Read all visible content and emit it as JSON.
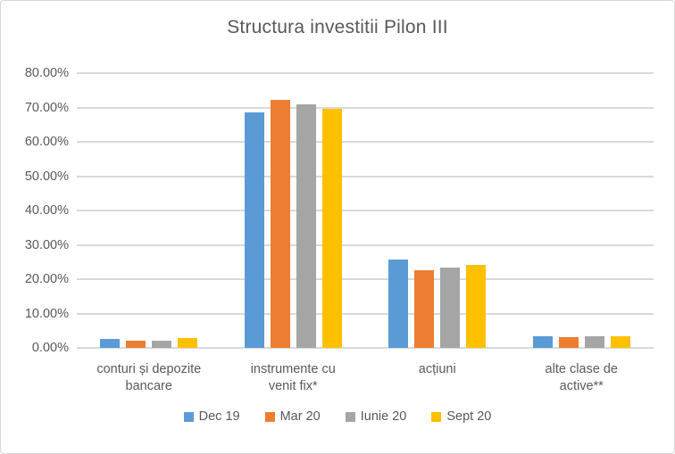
{
  "colors": {
    "text": "#595959",
    "grid": "#d9d9d9",
    "border": "#d7d7d7",
    "series_blue": "#5B9BD5",
    "series_orange": "#ED7D31",
    "series_gray": "#A5A5A5",
    "series_yellow": "#FFC000"
  },
  "chart_data": {
    "type": "bar",
    "title": "Structura investitii Pilon III",
    "categories": [
      "conturi și depozite bancare",
      "instrumente cu venit fix*",
      "acțiuni",
      "alte clase de active**"
    ],
    "category_label_lines": [
      [
        "conturi și depozite",
        "bancare"
      ],
      [
        "instrumente cu",
        "venit fix*"
      ],
      [
        "acțiuni"
      ],
      [
        "alte clase de",
        "active**"
      ]
    ],
    "series": [
      {
        "name": "Dec 19",
        "color": "#5B9BD5",
        "values": [
          2.6,
          68.5,
          25.6,
          3.3
        ]
      },
      {
        "name": "Mar 20",
        "color": "#ED7D31",
        "values": [
          2.1,
          72.3,
          22.5,
          3.1
        ]
      },
      {
        "name": "Iunie 20",
        "color": "#A5A5A5",
        "values": [
          2.2,
          70.9,
          23.4,
          3.5
        ]
      },
      {
        "name": "Sept 20",
        "color": "#FFC000",
        "values": [
          2.9,
          69.6,
          24.2,
          3.3
        ]
      }
    ],
    "xlabel": "",
    "ylabel": "",
    "ylim": [
      0,
      80
    ],
    "ytick_labels": [
      "0.00%",
      "10.00%",
      "20.00%",
      "30.00%",
      "40.00%",
      "50.00%",
      "60.00%",
      "70.00%",
      "80.00%"
    ],
    "grid": true,
    "legend_position": "bottom"
  }
}
